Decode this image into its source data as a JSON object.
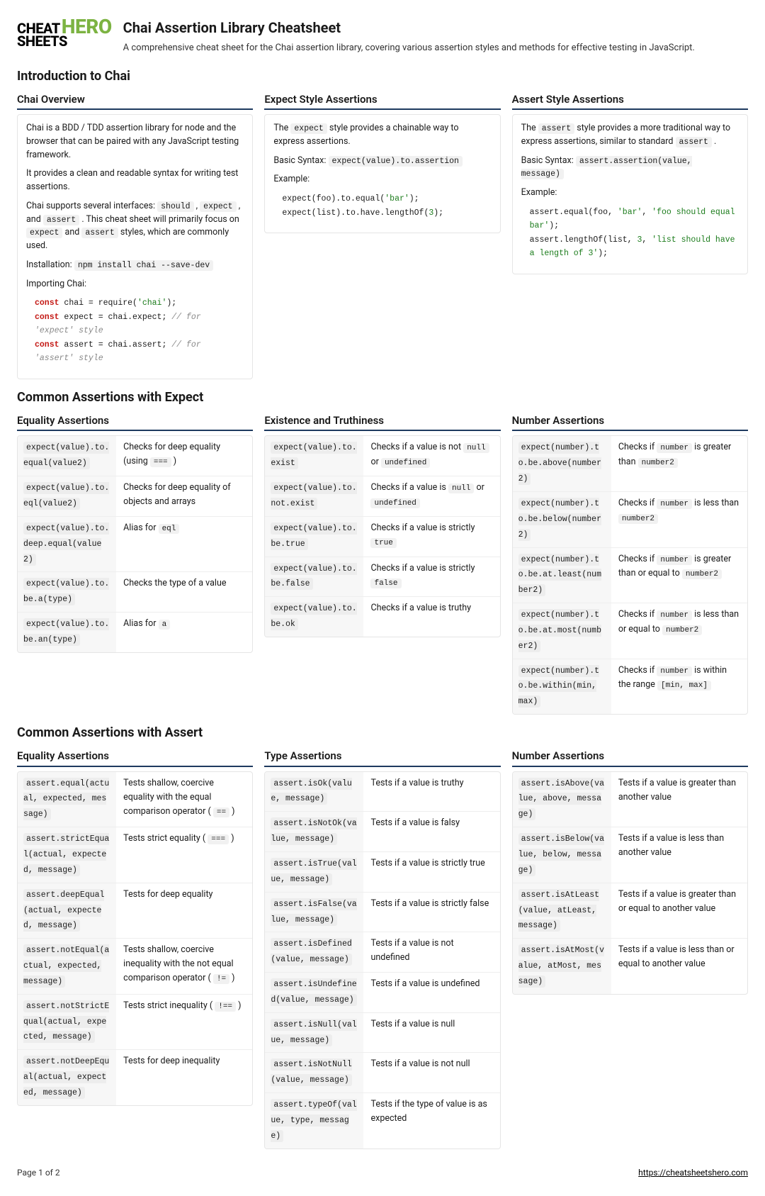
{
  "logo": {
    "cheat": "CHEAT",
    "hero": "HERO",
    "sheets": "SHEETS"
  },
  "title": "Chai Assertion Library Cheatsheet",
  "subtitle": "A comprehensive cheat sheet for the Chai assertion library, covering various assertion styles and methods for effective testing in JavaScript.",
  "h_intro": "Introduction to Chai",
  "overview": {
    "h": "Chai Overview",
    "p1": "Chai is a BDD / TDD assertion library for node and the browser that can be paired with any JavaScript testing framework.",
    "p2": "It provides a clean and readable syntax for writing test assertions.",
    "p3a": "Chai supports several interfaces: ",
    "p3b": " , ",
    "p3c": " , and ",
    "p3d": " . This cheat sheet will primarily focus on ",
    "p3e": " and ",
    "p3f": " styles, which are commonly used.",
    "c_should": "should",
    "c_expect": "expect",
    "c_assert": "assert",
    "inst_label": "Installation: ",
    "inst_cmd": "npm install chai --save-dev",
    "imp_label": "Importing Chai:"
  },
  "expect_style": {
    "h": "Expect Style Assertions",
    "p1a": "The ",
    "p1b": " style provides a chainable way to express assertions.",
    "c_expect": "expect",
    "bs_label": "Basic Syntax: ",
    "bs_code": "expect(value).to.assertion",
    "ex_label": "Example:"
  },
  "assert_style": {
    "h": "Assert Style Assertions",
    "p1a": "The ",
    "p1b": " style provides a more traditional way to express assertions, similar to standard ",
    "p1c": " .",
    "c_assert": "assert",
    "bs_label": "Basic Syntax: ",
    "bs_code": "assert.assertion(value, message)",
    "ex_label": "Example:"
  },
  "h_expect": "Common Assertions with Expect",
  "eq": {
    "h": "Equality Assertions",
    "rows": [
      {
        "c": "expect(value).to.equal(value2)",
        "d": "Checks for deep equality (using <code>===</code> )"
      },
      {
        "c": "expect(value).to.eql(value2)",
        "d": "Checks for deep equality of objects and arrays"
      },
      {
        "c": "expect(value).to.deep.equal(value2)",
        "d": "Alias for <code>eql</code>"
      },
      {
        "c": "expect(value).to.be.a(type)",
        "d": "Checks the type of a value"
      },
      {
        "c": "expect(value).to.be.an(type)",
        "d": "Alias for <code>a</code>"
      }
    ]
  },
  "exist": {
    "h": "Existence and Truthiness",
    "rows": [
      {
        "c": "expect(value).to.exist",
        "d": "Checks if a value is not <code>null</code> or <code>undefined</code>"
      },
      {
        "c": "expect(value).to.not.exist",
        "d": "Checks if a value is <code>null</code> or <code>undefined</code>"
      },
      {
        "c": "expect(value).to.be.true",
        "d": "Checks if a value is strictly <code>true</code>"
      },
      {
        "c": "expect(value).to.be.false",
        "d": "Checks if a value is strictly <code>false</code>"
      },
      {
        "c": "expect(value).to.be.ok",
        "d": "Checks if a value is truthy"
      }
    ]
  },
  "num": {
    "h": "Number Assertions",
    "rows": [
      {
        "c": "expect(number).to.be.above(number2)",
        "d": "Checks if <code>number</code> is greater than <code>number2</code>"
      },
      {
        "c": "expect(number).to.be.below(number2)",
        "d": "Checks if <code>number</code> is less than <code>number2</code>"
      },
      {
        "c": "expect(number).to.be.at.least(number2)",
        "d": "Checks if <code>number</code> is greater than or equal to <code>number2</code>"
      },
      {
        "c": "expect(number).to.be.at.most(number2)",
        "d": "Checks if <code>number</code> is less than or equal to <code>number2</code>"
      },
      {
        "c": "expect(number).to.be.within(min, max)",
        "d": "Checks if <code>number</code> is within the range <code>[min, max]</code>"
      }
    ]
  },
  "h_assert": "Common Assertions with Assert",
  "aeq": {
    "h": "Equality Assertions",
    "rows": [
      {
        "c": "assert.equal(actual, expected, message)",
        "d": "Tests shallow, coercive equality with the equal comparison operator ( <code>==</code> )"
      },
      {
        "c": "assert.strictEqual(actual, expected, message)",
        "d": "Tests strict equality ( <code>===</code> )"
      },
      {
        "c": "assert.deepEqual(actual, expected, message)",
        "d": "Tests for deep equality"
      },
      {
        "c": "assert.notEqual(actual, expected, message)",
        "d": "Tests shallow, coercive inequality with the not equal comparison operator ( <code>!=</code> )"
      },
      {
        "c": "assert.notStrictEqual(actual, expected, message)",
        "d": "Tests strict inequality ( <code>!==</code> )"
      },
      {
        "c": "assert.notDeepEqual(actual, expected, message)",
        "d": "Tests for deep inequality"
      }
    ]
  },
  "atype": {
    "h": "Type Assertions",
    "rows": [
      {
        "c": "assert.isOk(value, message)",
        "d": "Tests if a value is truthy"
      },
      {
        "c": "assert.isNotOk(value, message)",
        "d": "Tests if a value is falsy"
      },
      {
        "c": "assert.isTrue(value, message)",
        "d": "Tests if a value is strictly true"
      },
      {
        "c": "assert.isFalse(value, message)",
        "d": "Tests if a value is strictly false"
      },
      {
        "c": "assert.isDefined(value, message)",
        "d": "Tests if a value is not undefined"
      },
      {
        "c": "assert.isUndefined(value, message)",
        "d": "Tests if a value is undefined"
      },
      {
        "c": "assert.isNull(value, message)",
        "d": "Tests if a value is null"
      },
      {
        "c": "assert.isNotNull(value, message)",
        "d": "Tests if a value is not null"
      },
      {
        "c": "assert.typeOf(value, type, message)",
        "d": "Tests if the type of value is as expected"
      }
    ]
  },
  "anum": {
    "h": "Number Assertions",
    "rows": [
      {
        "c": "assert.isAbove(value, above, message)",
        "d": "Tests if a value is greater than another value"
      },
      {
        "c": "assert.isBelow(value, below, message)",
        "d": "Tests if a value is less than another value"
      },
      {
        "c": "assert.isAtLeast(value, atLeast, message)",
        "d": "Tests if a value is greater than or equal to another value"
      },
      {
        "c": "assert.isAtMost(value, atMost, message)",
        "d": "Tests if a value is less than or equal to another value"
      }
    ]
  },
  "footer": {
    "page": "Page 1 of 2",
    "url": "https://cheatsheetshero.com"
  }
}
